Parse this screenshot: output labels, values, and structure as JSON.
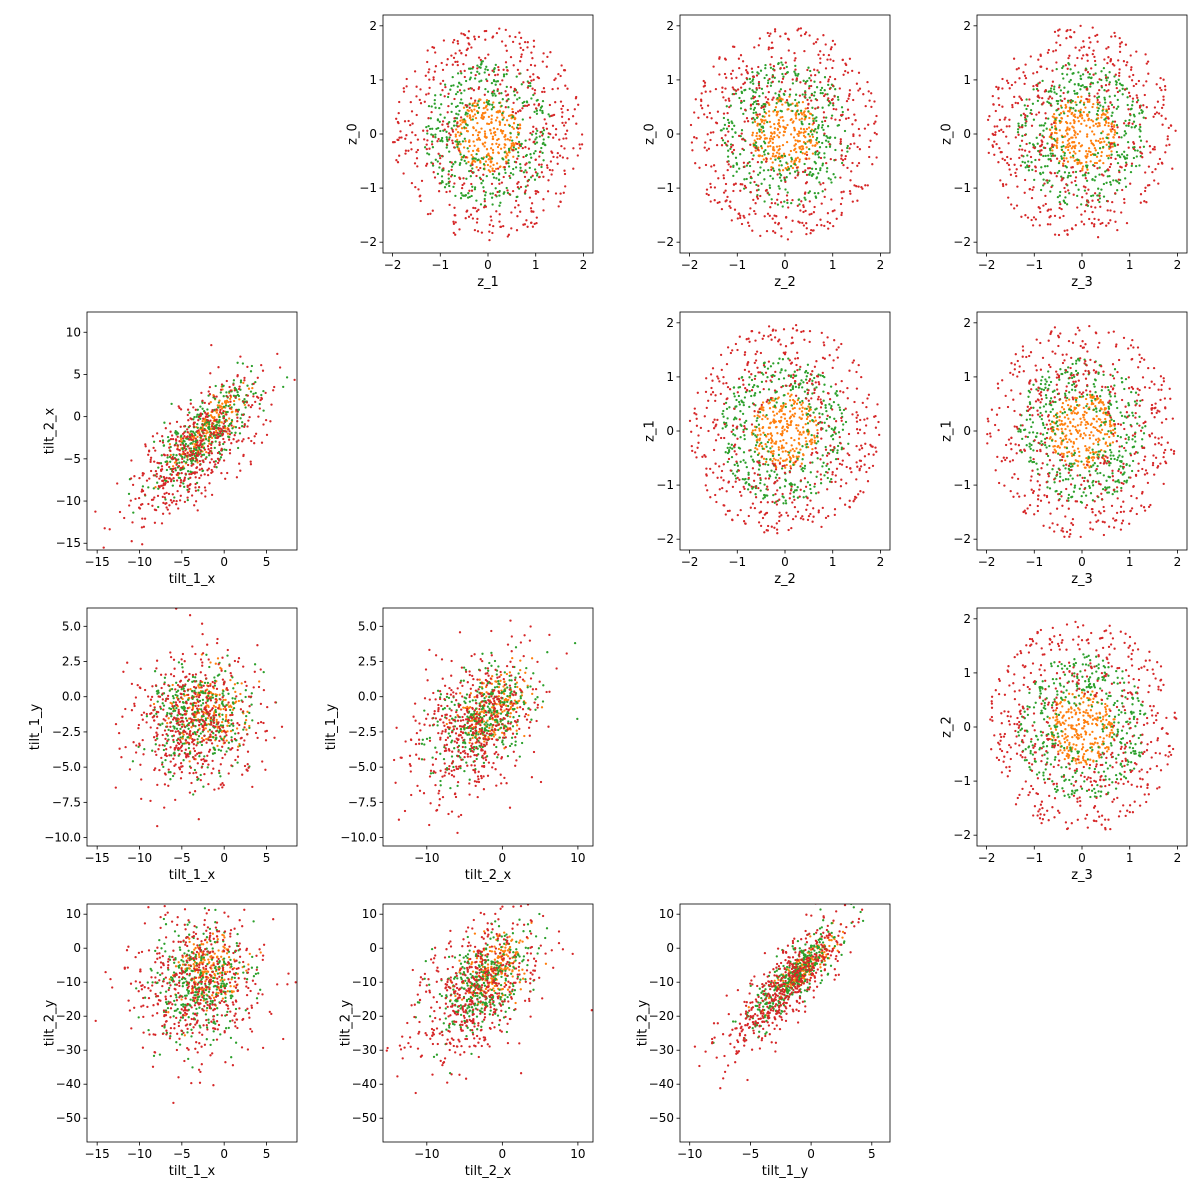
{
  "colors": {
    "groups": [
      "#ff7f0e",
      "#2ca02c",
      "#d62728"
    ],
    "axis": "#000000",
    "background": "#ffffff"
  },
  "chart_data": [
    {
      "type": "scatter",
      "xlabel": "z_1",
      "ylabel": "z_0",
      "xlim": [
        -2.2,
        2.2
      ],
      "ylim": [
        -2.2,
        2.2
      ],
      "xticks": [
        -2,
        -1,
        0,
        1,
        2
      ],
      "xtick_labels": [
        "−2",
        "−1",
        "0",
        "1",
        "2"
      ],
      "yticks": [
        -2,
        -1,
        0,
        1,
        2
      ],
      "ytick_labels": [
        "−2",
        "−1",
        "0",
        "1",
        "2"
      ],
      "point_groups": [
        {
          "color": "#ff7f0e",
          "count": 260,
          "shape": "disk",
          "radius": 0.7,
          "center": [
            0,
            0
          ]
        },
        {
          "color": "#2ca02c",
          "count": 400,
          "shape": "ring",
          "rmin": 0.4,
          "rmax": 1.35,
          "center": [
            0,
            0
          ]
        },
        {
          "color": "#d62728",
          "count": 520,
          "shape": "ring",
          "rmin": 0.6,
          "rmax": 2.0,
          "center": [
            0,
            0
          ]
        }
      ]
    },
    {
      "type": "scatter",
      "xlabel": "z_2",
      "ylabel": "z_0",
      "xlim": [
        -2.2,
        2.2
      ],
      "ylim": [
        -2.2,
        2.2
      ],
      "xticks": [
        -2,
        -1,
        0,
        1,
        2
      ],
      "xtick_labels": [
        "−2",
        "−1",
        "0",
        "1",
        "2"
      ],
      "yticks": [
        -2,
        -1,
        0,
        1,
        2
      ],
      "ytick_labels": [
        "−2",
        "−1",
        "0",
        "1",
        "2"
      ],
      "point_groups": [
        {
          "color": "#ff7f0e",
          "count": 260,
          "shape": "disk",
          "radius": 0.7,
          "center": [
            0,
            0
          ]
        },
        {
          "color": "#2ca02c",
          "count": 400,
          "shape": "ring",
          "rmin": 0.4,
          "rmax": 1.35,
          "center": [
            0,
            0
          ]
        },
        {
          "color": "#d62728",
          "count": 520,
          "shape": "ring",
          "rmin": 0.6,
          "rmax": 2.0,
          "center": [
            0,
            0
          ]
        }
      ]
    },
    {
      "type": "scatter",
      "xlabel": "z_3",
      "ylabel": "z_0",
      "xlim": [
        -2.2,
        2.2
      ],
      "ylim": [
        -2.2,
        2.2
      ],
      "xticks": [
        -2,
        -1,
        0,
        1,
        2
      ],
      "xtick_labels": [
        "−2",
        "−1",
        "0",
        "1",
        "2"
      ],
      "yticks": [
        -2,
        -1,
        0,
        1,
        2
      ],
      "ytick_labels": [
        "−2",
        "−1",
        "0",
        "1",
        "2"
      ],
      "point_groups": [
        {
          "color": "#ff7f0e",
          "count": 260,
          "shape": "disk",
          "radius": 0.7,
          "center": [
            0,
            0
          ]
        },
        {
          "color": "#2ca02c",
          "count": 400,
          "shape": "ring",
          "rmin": 0.4,
          "rmax": 1.35,
          "center": [
            0,
            0
          ]
        },
        {
          "color": "#d62728",
          "count": 520,
          "shape": "ring",
          "rmin": 0.6,
          "rmax": 2.0,
          "center": [
            0,
            0
          ]
        }
      ]
    },
    {
      "type": "scatter",
      "xlabel": "tilt_1_x",
      "ylabel": "tilt_2_x",
      "xlim": [
        -16.2,
        8.6
      ],
      "ylim": [
        -15.8,
        12.4
      ],
      "xticks": [
        -15,
        -10,
        -5,
        0,
        5
      ],
      "xtick_labels": [
        "−15",
        "−10",
        "−5",
        "0",
        "5"
      ],
      "yticks": [
        -15,
        -10,
        -5,
        0,
        5,
        10
      ],
      "ytick_labels": [
        "−15",
        "−10",
        "−5",
        "0",
        "5",
        "10"
      ],
      "point_groups": [
        {
          "color": "#ff7f0e",
          "count": 200,
          "shape": "gauss",
          "mean": [
            -1.5,
            -1.0
          ],
          "sd": [
            2.0,
            2.3
          ],
          "corr": 0.8
        },
        {
          "color": "#2ca02c",
          "count": 350,
          "shape": "gauss",
          "mean": [
            -2.5,
            -2.5
          ],
          "sd": [
            3.0,
            3.3
          ],
          "corr": 0.75
        },
        {
          "color": "#d62728",
          "count": 500,
          "shape": "gauss",
          "mean": [
            -3.0,
            -3.5
          ],
          "sd": [
            4.0,
            4.3
          ],
          "corr": 0.7
        }
      ]
    },
    {
      "type": "scatter",
      "xlabel": "z_2",
      "ylabel": "z_1",
      "xlim": [
        -2.2,
        2.2
      ],
      "ylim": [
        -2.2,
        2.2
      ],
      "xticks": [
        -2,
        -1,
        0,
        1,
        2
      ],
      "xtick_labels": [
        "−2",
        "−1",
        "0",
        "1",
        "2"
      ],
      "yticks": [
        -2,
        -1,
        0,
        1,
        2
      ],
      "ytick_labels": [
        "−2",
        "−1",
        "0",
        "1",
        "2"
      ],
      "point_groups": [
        {
          "color": "#ff7f0e",
          "count": 260,
          "shape": "disk",
          "radius": 0.7,
          "center": [
            0,
            0
          ]
        },
        {
          "color": "#2ca02c",
          "count": 400,
          "shape": "ring",
          "rmin": 0.4,
          "rmax": 1.35,
          "center": [
            0,
            0
          ]
        },
        {
          "color": "#d62728",
          "count": 520,
          "shape": "ring",
          "rmin": 0.6,
          "rmax": 2.0,
          "center": [
            0,
            0
          ]
        }
      ]
    },
    {
      "type": "scatter",
      "xlabel": "z_3",
      "ylabel": "z_1",
      "xlim": [
        -2.2,
        2.2
      ],
      "ylim": [
        -2.2,
        2.2
      ],
      "xticks": [
        -2,
        -1,
        0,
        1,
        2
      ],
      "xtick_labels": [
        "−2",
        "−1",
        "0",
        "1",
        "2"
      ],
      "yticks": [
        -2,
        -1,
        0,
        1,
        2
      ],
      "ytick_labels": [
        "−2",
        "−1",
        "0",
        "1",
        "2"
      ],
      "point_groups": [
        {
          "color": "#ff7f0e",
          "count": 260,
          "shape": "disk",
          "radius": 0.7,
          "center": [
            0,
            0
          ]
        },
        {
          "color": "#2ca02c",
          "count": 400,
          "shape": "ring",
          "rmin": 0.4,
          "rmax": 1.35,
          "center": [
            0,
            0
          ]
        },
        {
          "color": "#d62728",
          "count": 520,
          "shape": "ring",
          "rmin": 0.6,
          "rmax": 2.0,
          "center": [
            0,
            0
          ]
        }
      ]
    },
    {
      "type": "scatter",
      "xlabel": "tilt_1_x",
      "ylabel": "tilt_1_y",
      "xlim": [
        -16.2,
        8.6
      ],
      "ylim": [
        -10.6,
        6.3
      ],
      "xticks": [
        -15,
        -10,
        -5,
        0,
        5
      ],
      "xtick_labels": [
        "−15",
        "−10",
        "−5",
        "0",
        "5"
      ],
      "yticks": [
        -10,
        -7.5,
        -5,
        -2.5,
        0,
        2.5,
        5
      ],
      "ytick_labels": [
        "−10.0",
        "−7.5",
        "−5.0",
        "−2.5",
        "0.0",
        "2.5",
        "5.0"
      ],
      "point_groups": [
        {
          "color": "#ff7f0e",
          "count": 200,
          "shape": "gauss",
          "mean": [
            -2.0,
            -1.0
          ],
          "sd": [
            2.0,
            1.3
          ],
          "corr": 0.1
        },
        {
          "color": "#2ca02c",
          "count": 350,
          "shape": "gauss",
          "mean": [
            -3.0,
            -1.5
          ],
          "sd": [
            3.0,
            1.9
          ],
          "corr": 0.1
        },
        {
          "color": "#d62728",
          "count": 500,
          "shape": "gauss",
          "mean": [
            -3.5,
            -2.0
          ],
          "sd": [
            4.0,
            2.6
          ],
          "corr": 0.05
        }
      ]
    },
    {
      "type": "scatter",
      "xlabel": "tilt_2_x",
      "ylabel": "tilt_1_y",
      "xlim": [
        -15.8,
        12.0
      ],
      "ylim": [
        -10.6,
        6.3
      ],
      "xticks": [
        -10,
        0,
        10
      ],
      "xtick_labels": [
        "−10",
        "0",
        "10"
      ],
      "yticks": [
        -10,
        -7.5,
        -5,
        -2.5,
        0,
        2.5,
        5
      ],
      "ytick_labels": [
        "−10.0",
        "−7.5",
        "−5.0",
        "−2.5",
        "0.0",
        "2.5",
        "5.0"
      ],
      "point_groups": [
        {
          "color": "#ff7f0e",
          "count": 200,
          "shape": "gauss",
          "mean": [
            -1.0,
            -0.8
          ],
          "sd": [
            2.3,
            1.3
          ],
          "corr": 0.45
        },
        {
          "color": "#2ca02c",
          "count": 350,
          "shape": "gauss",
          "mean": [
            -2.5,
            -1.5
          ],
          "sd": [
            3.3,
            1.9
          ],
          "corr": 0.45
        },
        {
          "color": "#d62728",
          "count": 500,
          "shape": "gauss",
          "mean": [
            -3.5,
            -2.2
          ],
          "sd": [
            4.3,
            2.7
          ],
          "corr": 0.4
        }
      ]
    },
    {
      "type": "scatter",
      "xlabel": "z_3",
      "ylabel": "z_2",
      "xlim": [
        -2.2,
        2.2
      ],
      "ylim": [
        -2.2,
        2.2
      ],
      "xticks": [
        -2,
        -1,
        0,
        1,
        2
      ],
      "xtick_labels": [
        "−2",
        "−1",
        "0",
        "1",
        "2"
      ],
      "yticks": [
        -2,
        -1,
        0,
        1,
        2
      ],
      "ytick_labels": [
        "−2",
        "−1",
        "0",
        "1",
        "2"
      ],
      "point_groups": [
        {
          "color": "#ff7f0e",
          "count": 260,
          "shape": "disk",
          "radius": 0.7,
          "center": [
            0,
            0
          ]
        },
        {
          "color": "#2ca02c",
          "count": 400,
          "shape": "ring",
          "rmin": 0.4,
          "rmax": 1.35,
          "center": [
            0,
            0
          ]
        },
        {
          "color": "#d62728",
          "count": 520,
          "shape": "ring",
          "rmin": 0.6,
          "rmax": 2.0,
          "center": [
            0,
            0
          ]
        }
      ]
    },
    {
      "type": "scatter",
      "xlabel": "tilt_1_x",
      "ylabel": "tilt_2_y",
      "xlim": [
        -16.2,
        8.6
      ],
      "ylim": [
        -57,
        13
      ],
      "xticks": [
        -15,
        -10,
        -5,
        0,
        5
      ],
      "xtick_labels": [
        "−15",
        "−10",
        "−5",
        "0",
        "5"
      ],
      "yticks": [
        -50,
        -40,
        -30,
        -20,
        -10,
        0,
        10
      ],
      "ytick_labels": [
        "−50",
        "−40",
        "−30",
        "−20",
        "−10",
        "0",
        "10"
      ],
      "point_groups": [
        {
          "color": "#ff7f0e",
          "count": 200,
          "shape": "gauss",
          "mean": [
            -2.0,
            -7.0
          ],
          "sd": [
            2.0,
            5.0
          ],
          "corr": 0.1
        },
        {
          "color": "#2ca02c",
          "count": 350,
          "shape": "gauss",
          "mean": [
            -3.0,
            -10.0
          ],
          "sd": [
            3.0,
            8.0
          ],
          "corr": 0.1
        },
        {
          "color": "#d62728",
          "count": 500,
          "shape": "gauss",
          "mean": [
            -3.5,
            -12.0
          ],
          "sd": [
            4.0,
            11.0
          ],
          "corr": 0.05
        }
      ]
    },
    {
      "type": "scatter",
      "xlabel": "tilt_2_x",
      "ylabel": "tilt_2_y",
      "xlim": [
        -15.8,
        12.0
      ],
      "ylim": [
        -57,
        13
      ],
      "xticks": [
        -10,
        0,
        10
      ],
      "xtick_labels": [
        "−10",
        "0",
        "10"
      ],
      "yticks": [
        -50,
        -40,
        -30,
        -20,
        -10,
        0,
        10
      ],
      "ytick_labels": [
        "−50",
        "−40",
        "−30",
        "−20",
        "−10",
        "0",
        "10"
      ],
      "point_groups": [
        {
          "color": "#ff7f0e",
          "count": 200,
          "shape": "gauss",
          "mean": [
            -1.0,
            -6.0
          ],
          "sd": [
            2.3,
            5.0
          ],
          "corr": 0.45
        },
        {
          "color": "#2ca02c",
          "count": 350,
          "shape": "gauss",
          "mean": [
            -2.5,
            -10.0
          ],
          "sd": [
            3.3,
            8.0
          ],
          "corr": 0.45
        },
        {
          "color": "#d62728",
          "count": 500,
          "shape": "gauss",
          "mean": [
            -3.5,
            -12.0
          ],
          "sd": [
            4.3,
            11.0
          ],
          "corr": 0.45
        }
      ]
    },
    {
      "type": "scatter",
      "xlabel": "tilt_1_y",
      "ylabel": "tilt_2_y",
      "xlim": [
        -10.8,
        6.5
      ],
      "ylim": [
        -57,
        13
      ],
      "xticks": [
        -10,
        -5,
        0,
        5
      ],
      "xtick_labels": [
        "−10",
        "−5",
        "0",
        "5"
      ],
      "yticks": [
        -50,
        -40,
        -30,
        -20,
        -10,
        0,
        10
      ],
      "ytick_labels": [
        "−50",
        "−40",
        "−30",
        "−20",
        "−10",
        "0",
        "10"
      ],
      "point_groups": [
        {
          "color": "#ff7f0e",
          "count": 200,
          "shape": "gauss",
          "mean": [
            -0.8,
            -6.0
          ],
          "sd": [
            1.3,
            4.5
          ],
          "corr": 0.85
        },
        {
          "color": "#2ca02c",
          "count": 350,
          "shape": "gauss",
          "mean": [
            -1.5,
            -9.0
          ],
          "sd": [
            1.9,
            7.5
          ],
          "corr": 0.85
        },
        {
          "color": "#d62728",
          "count": 500,
          "shape": "gauss",
          "mean": [
            -2.0,
            -11.0
          ],
          "sd": [
            2.6,
            10.5
          ],
          "corr": 0.85
        }
      ]
    }
  ]
}
